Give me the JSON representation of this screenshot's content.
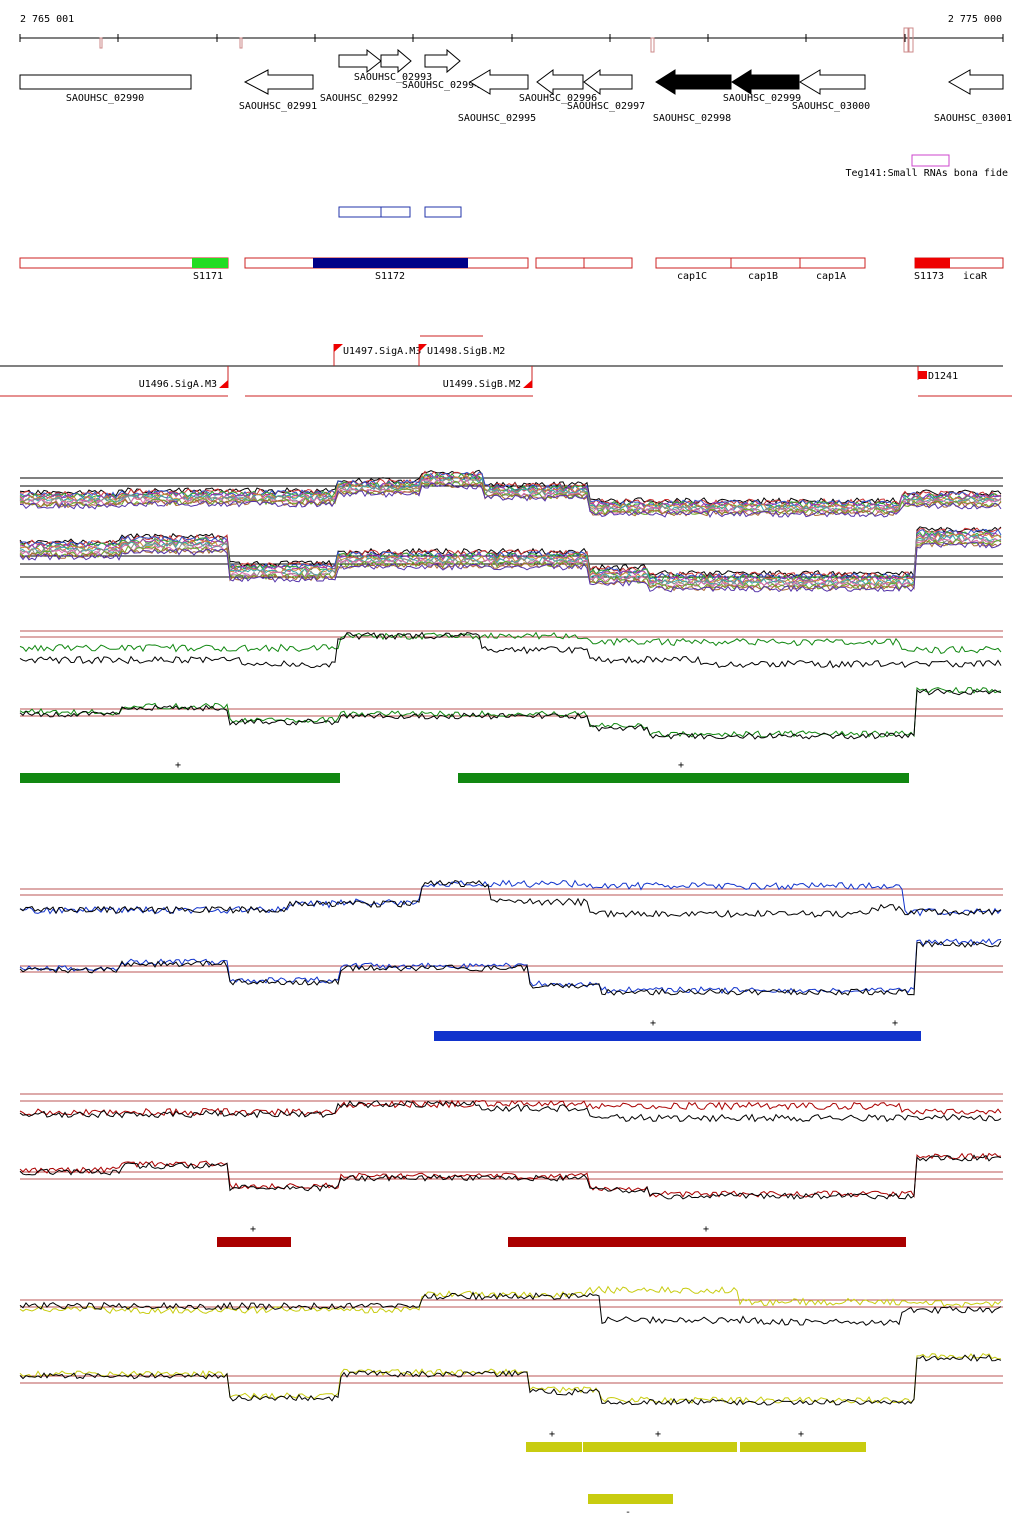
{
  "coords": {
    "start": "2 765 001",
    "end": "2 775 000"
  },
  "genes": [
    {
      "id": "SAOUHSC_02990",
      "label": "SAOUHSC_02990",
      "dir": "box",
      "filled": false
    },
    {
      "id": "SAOUHSC_02991",
      "label": "SAOUHSC_02991",
      "dir": "left",
      "filled": false
    },
    {
      "id": "SAOUHSC_02992",
      "label": "SAOUHSC_02992",
      "dir": "right",
      "filled": false
    },
    {
      "id": "SAOUHSC_02993",
      "label": "SAOUHSC_02993",
      "dir": "right",
      "filled": false
    },
    {
      "id": "SAOUHSC_02994",
      "label": "SAOUHSC_02994",
      "dir": "right",
      "filled": false
    },
    {
      "id": "SAOUHSC_02995",
      "label": "SAOUHSC_02995",
      "dir": "left",
      "filled": false
    },
    {
      "id": "SAOUHSC_02996",
      "label": "SAOUHSC_02996",
      "dir": "left",
      "filled": false
    },
    {
      "id": "SAOUHSC_02997",
      "label": "SAOUHSC_02997",
      "dir": "left",
      "filled": false
    },
    {
      "id": "SAOUHSC_02998",
      "label": "SAOUHSC_02998",
      "dir": "left",
      "filled": true
    },
    {
      "id": "SAOUHSC_02999",
      "label": "SAOUHSC_02999",
      "dir": "left",
      "filled": true
    },
    {
      "id": "SAOUHSC_03000",
      "label": "SAOUHSC_03000",
      "dir": "left",
      "filled": false
    },
    {
      "id": "SAOUHSC_03001",
      "label": "SAOUHSC_03001",
      "dir": "left",
      "filled": false
    }
  ],
  "small_rna": {
    "label": "Teg141:Small RNAs bona fide",
    "color": "#cc44cc"
  },
  "segments": [
    {
      "id": "S1171",
      "label": "S1171",
      "color": "#22dd22"
    },
    {
      "id": "S1172",
      "label": "S1172",
      "color": "#000088"
    },
    {
      "id": "cap1C",
      "label": "cap1C"
    },
    {
      "id": "cap1B",
      "label": "cap1B"
    },
    {
      "id": "cap1A",
      "label": "cap1A"
    },
    {
      "id": "S1173",
      "label": "S1173",
      "color": "#ee0000"
    },
    {
      "id": "icaR",
      "label": "icaR"
    }
  ],
  "promoters": [
    {
      "id": "U1496",
      "label": "U1496.SigA.M3"
    },
    {
      "id": "U1497",
      "label": "U1497.SigA.M3"
    },
    {
      "id": "U1498",
      "label": "U1498.SigB.M2"
    },
    {
      "id": "U1499",
      "label": "U1499.SigB.M2"
    },
    {
      "id": "D1241",
      "label": "D1241"
    }
  ],
  "colors": {
    "outline_red": "#cc2222",
    "green": "#118811",
    "blue": "#1133cc",
    "darkred": "#aa0000",
    "yellow": "#c8cc10",
    "threshold": "#bb5555"
  },
  "panels": [
    {
      "name": "green",
      "color": "#118811",
      "plus_marks": [
        "+",
        "+"
      ],
      "minus_marks": []
    },
    {
      "name": "blue",
      "color": "#1133cc",
      "plus_marks": [
        "+",
        "+"
      ],
      "minus_marks": []
    },
    {
      "name": "darkred",
      "color": "#aa0000",
      "plus_marks": [
        "+",
        "+"
      ],
      "minus_marks": []
    },
    {
      "name": "yellow",
      "color": "#c8cc10",
      "plus_marks": [
        "+",
        "+",
        "+"
      ],
      "minus_marks": [
        "-"
      ]
    }
  ]
}
